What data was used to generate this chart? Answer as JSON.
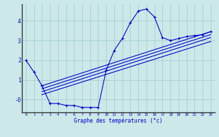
{
  "xlabel": "Graphe des températures (°c)",
  "background_color": "#cce8e8",
  "grid_color": "#99cccc",
  "line_color": "#0000cc",
  "xlim": [
    -0.5,
    23.5
  ],
  "ylim": [
    -0.65,
    4.85
  ],
  "x_ticks": [
    0,
    1,
    2,
    3,
    4,
    5,
    6,
    7,
    8,
    9,
    10,
    11,
    12,
    13,
    14,
    15,
    16,
    17,
    18,
    19,
    20,
    21,
    22,
    23
  ],
  "y_ticks": [
    0,
    1,
    2,
    3,
    4
  ],
  "y_tick_labels": [
    "-0",
    "1",
    "2",
    "3",
    "4"
  ],
  "main_x": [
    0,
    1,
    2,
    3,
    4,
    5,
    6,
    7,
    8,
    9,
    10,
    11,
    12,
    13,
    14,
    15,
    16,
    17,
    18,
    19,
    20,
    21,
    22,
    23
  ],
  "main_y": [
    2.0,
    1.4,
    0.7,
    -0.2,
    -0.2,
    -0.3,
    -0.3,
    -0.4,
    -0.4,
    -0.4,
    1.5,
    2.5,
    3.1,
    3.9,
    4.5,
    4.6,
    4.2,
    3.15,
    3.0,
    3.1,
    3.2,
    3.25,
    3.3,
    3.45
  ],
  "trend_lines": [
    {
      "x": [
        2,
        23
      ],
      "y": [
        0.7,
        3.45
      ]
    },
    {
      "x": [
        2,
        23
      ],
      "y": [
        0.55,
        3.3
      ]
    },
    {
      "x": [
        2,
        23
      ],
      "y": [
        0.4,
        3.15
      ]
    },
    {
      "x": [
        2,
        23
      ],
      "y": [
        0.25,
        2.95
      ]
    }
  ]
}
